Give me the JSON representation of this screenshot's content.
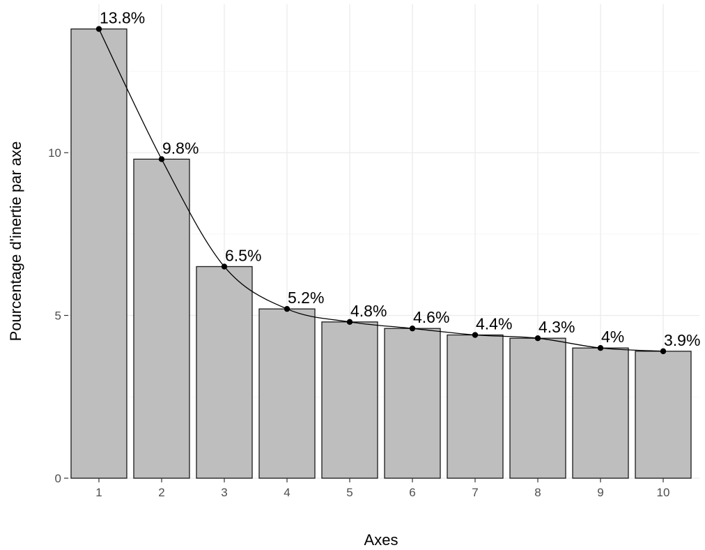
{
  "chart_data": {
    "type": "bar",
    "categories": [
      "1",
      "2",
      "3",
      "4",
      "5",
      "6",
      "7",
      "8",
      "9",
      "10"
    ],
    "values": [
      13.8,
      9.8,
      6.5,
      5.2,
      4.8,
      4.6,
      4.4,
      4.3,
      4.0,
      3.9
    ],
    "labels": [
      "13.8%",
      "9.8%",
      "6.5%",
      "5.2%",
      "4.8%",
      "4.6%",
      "4.4%",
      "4.3%",
      "4%",
      "3.9%"
    ],
    "overlay": "line-with-points",
    "xlabel": "Axes",
    "ylabel": "Pourcentage d'inertie par axe",
    "yticks": [
      "0",
      "5",
      "10"
    ],
    "ylim": [
      0,
      14.5
    ],
    "grid": true,
    "colors": {
      "bar_fill": "#bebebe",
      "bar_outline": "#1a1a1a",
      "line": "#000000"
    }
  }
}
